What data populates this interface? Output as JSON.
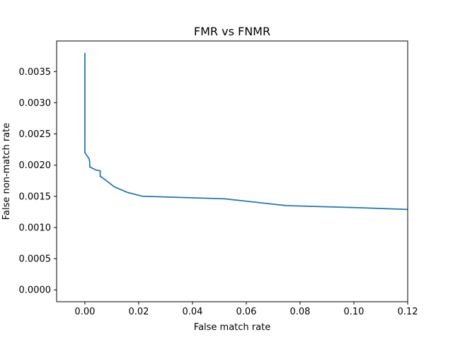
{
  "chart_data": {
    "type": "line",
    "title": "FMR vs FNMR",
    "xlabel": "False match rate",
    "ylabel": "False non-match rate",
    "xlim": [
      -0.0105,
      0.12
    ],
    "ylim": [
      -0.00019,
      0.00399
    ],
    "x_ticks": [
      0.0,
      0.02,
      0.04,
      0.06,
      0.08,
      0.1,
      0.12
    ],
    "x_tick_labels": [
      "0.00",
      "0.02",
      "0.04",
      "0.06",
      "0.08",
      "0.10",
      "0.12"
    ],
    "y_ticks": [
      0.0,
      0.0005,
      0.001,
      0.0015,
      0.002,
      0.0025,
      0.003,
      0.0035
    ],
    "y_tick_labels": [
      "0.0000",
      "0.0005",
      "0.0010",
      "0.0015",
      "0.0020",
      "0.0025",
      "0.0030",
      "0.0035"
    ],
    "grid": false,
    "legend": "none",
    "series": [
      {
        "color": "#1f77b4",
        "x": [
          0.0,
          0.0,
          0.0008,
          0.0016,
          0.0018,
          0.0018,
          0.0028,
          0.0042,
          0.0057,
          0.0057,
          0.0065,
          0.008,
          0.011,
          0.016,
          0.0215,
          0.052,
          0.075,
          0.1,
          0.12
        ],
        "y": [
          0.0038,
          0.0022,
          0.00215,
          0.0021,
          0.00205,
          0.00197,
          0.00195,
          0.00192,
          0.00191,
          0.00182,
          0.0018,
          0.00175,
          0.00165,
          0.00156,
          0.0015,
          0.00146,
          0.00135,
          0.00132,
          0.00129
        ]
      }
    ]
  }
}
